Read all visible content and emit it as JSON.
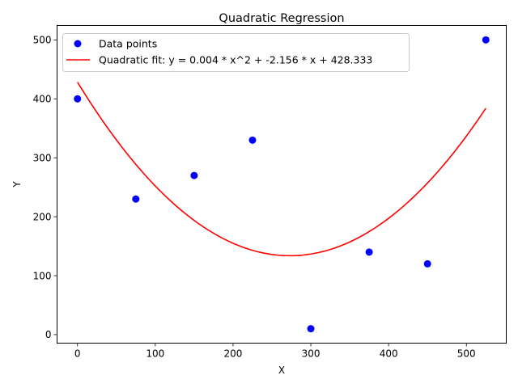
{
  "chart_data": {
    "type": "scatter",
    "title": "Quadratic Regression",
    "xlabel": "X",
    "ylabel": "Y",
    "xlim": [
      -26.25,
      551.25
    ],
    "ylim": [
      -14.5,
      524.5
    ],
    "xticks": [
      0,
      100,
      200,
      300,
      400,
      500
    ],
    "yticks": [
      0,
      100,
      200,
      300,
      400,
      500
    ],
    "grid": false,
    "legend_position": "top-left",
    "series": [
      {
        "name": "Data points",
        "kind": "scatter",
        "color": "#0000ff",
        "points": [
          {
            "x": 0,
            "y": 400
          },
          {
            "x": 75,
            "y": 230
          },
          {
            "x": 150,
            "y": 270
          },
          {
            "x": 225,
            "y": 330
          },
          {
            "x": 300,
            "y": 10
          },
          {
            "x": 375,
            "y": 140
          },
          {
            "x": 450,
            "y": 120
          },
          {
            "x": 525,
            "y": 500
          }
        ]
      },
      {
        "name": "Quadratic fit: y = 0.004 * x^2 + -2.156 * x + 428.333",
        "kind": "line",
        "color": "#ff0000",
        "coefficients": {
          "a": 0.003946,
          "b": -2.156,
          "c": 428.333
        },
        "x_range": [
          0,
          525
        ]
      }
    ]
  }
}
